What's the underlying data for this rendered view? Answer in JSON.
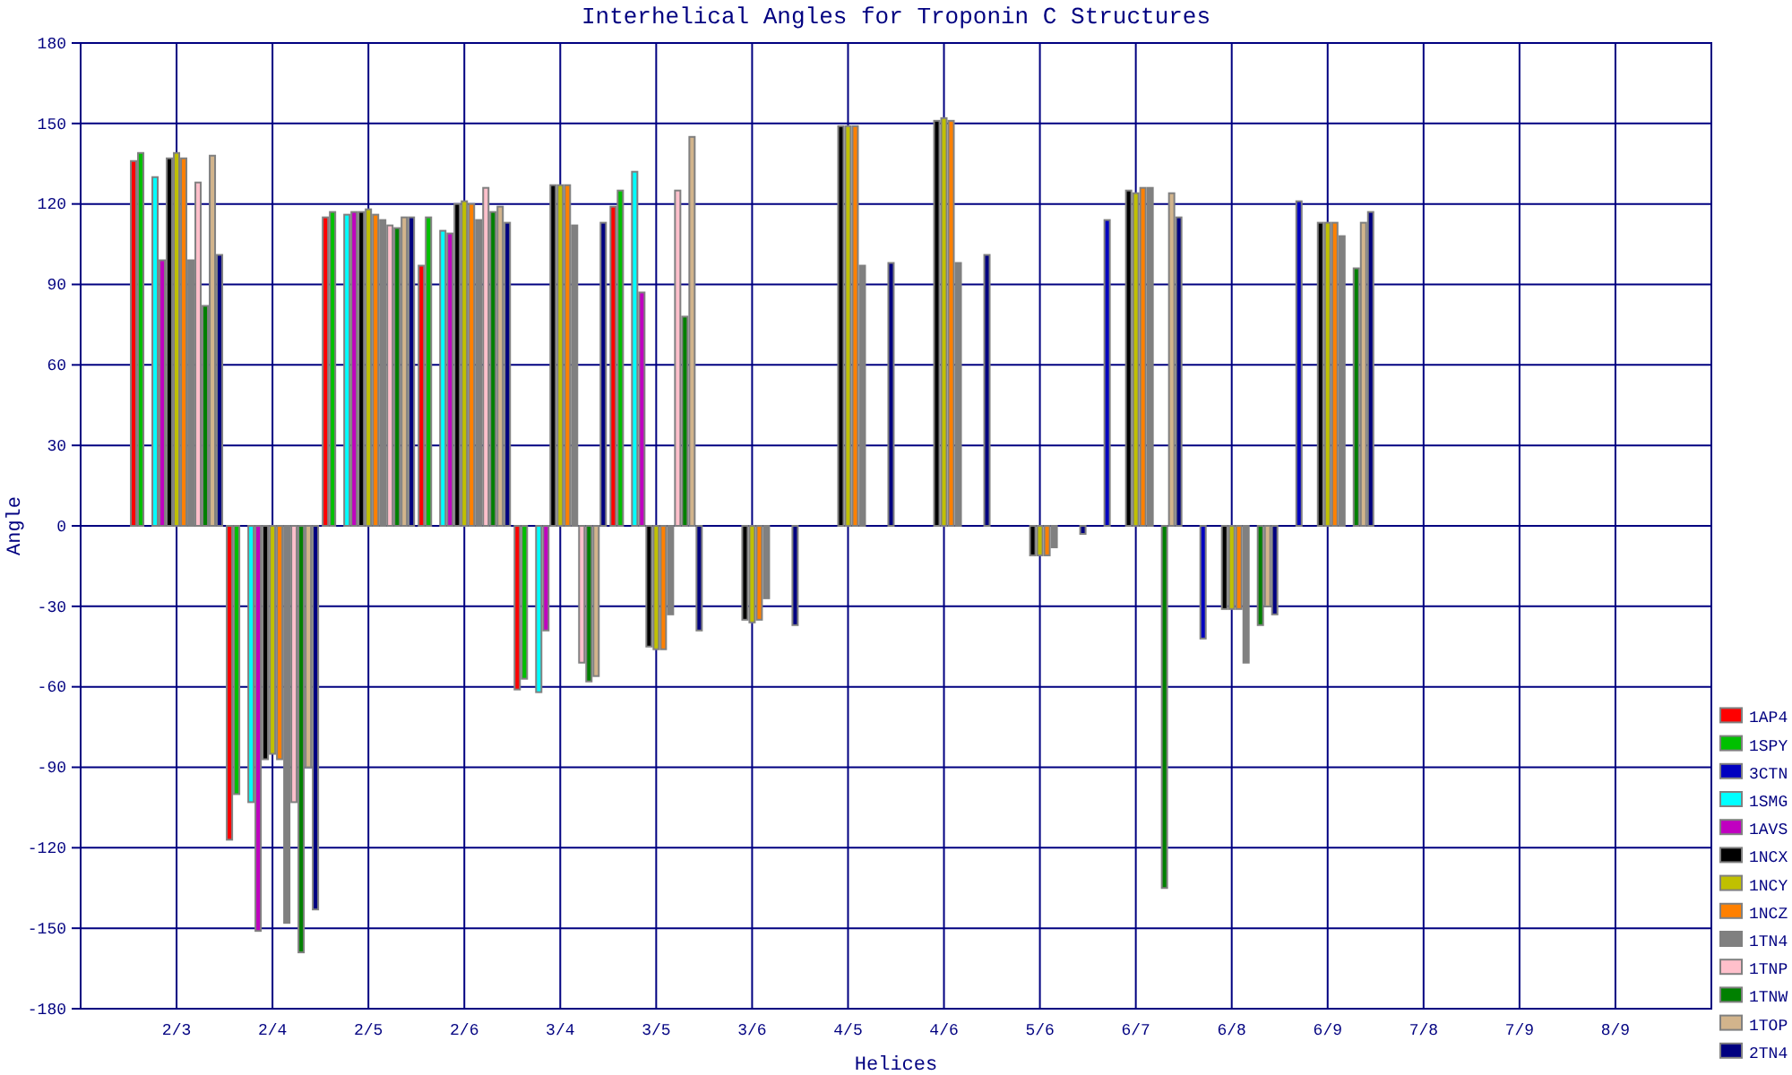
{
  "chart_data": {
    "type": "bar",
    "title": "Interhelical Angles for Troponin C Structures",
    "xlabel": "Helices",
    "ylabel": "Angle",
    "categories": [
      "2/3",
      "2/4",
      "2/5",
      "2/6",
      "3/4",
      "3/5",
      "3/6",
      "4/5",
      "4/6",
      "5/6",
      "6/7",
      "6/8",
      "6/9",
      "7/8",
      "7/9",
      "8/9"
    ],
    "ylim": [
      -180,
      180
    ],
    "yticks": [
      -180,
      -150,
      -120,
      -90,
      -60,
      -30,
      0,
      30,
      60,
      90,
      120,
      150,
      180
    ],
    "grid": true,
    "legend": "bottom right",
    "series": [
      {
        "name": "1AP4",
        "color": "#ff0000",
        "values": [
          136,
          -117,
          115,
          97,
          -61,
          119,
          null,
          null,
          null,
          null,
          null,
          null,
          null,
          null,
          null,
          null
        ]
      },
      {
        "name": "1SPY",
        "color": "#00c000",
        "values": [
          139,
          -100,
          117,
          115,
          -57,
          125,
          null,
          null,
          null,
          null,
          null,
          null,
          null,
          null,
          null,
          null
        ]
      },
      {
        "name": "3CTN",
        "color": "#0000c0",
        "values": [
          null,
          null,
          null,
          null,
          null,
          null,
          null,
          null,
          null,
          null,
          114,
          -42,
          121,
          null,
          null,
          null
        ]
      },
      {
        "name": "1SMG",
        "color": "#00ffff",
        "values": [
          130,
          -103,
          116,
          110,
          -62,
          132,
          null,
          null,
          null,
          null,
          null,
          null,
          null,
          null,
          null,
          null
        ]
      },
      {
        "name": "1AVS",
        "color": "#c000c0",
        "values": [
          99,
          -151,
          117,
          109,
          -39,
          87,
          null,
          null,
          null,
          null,
          null,
          null,
          null,
          null,
          null,
          null
        ]
      },
      {
        "name": "1NCX",
        "color": "#000000",
        "values": [
          137,
          -87,
          117,
          120,
          127,
          -45,
          -35,
          149,
          151,
          -11,
          125,
          -31,
          113,
          null,
          null,
          null
        ]
      },
      {
        "name": "1NCY",
        "color": "#c0c000",
        "values": [
          139,
          -85,
          118,
          121,
          127,
          -46,
          -36,
          149,
          152,
          -11,
          124,
          -31,
          113,
          null,
          null,
          null
        ]
      },
      {
        "name": "1NCZ",
        "color": "#ff8000",
        "values": [
          137,
          -87,
          116,
          120,
          127,
          -46,
          -35,
          149,
          151,
          -11,
          126,
          -31,
          113,
          null,
          null,
          null
        ]
      },
      {
        "name": "1TN4",
        "color": "#808080",
        "values": [
          99,
          -148,
          114,
          114,
          112,
          -33,
          -27,
          97,
          98,
          -8,
          126,
          -51,
          108,
          null,
          null,
          null
        ]
      },
      {
        "name": "1TNP",
        "color": "#ffc0cb",
        "values": [
          128,
          -103,
          112,
          126,
          -51,
          125,
          null,
          null,
          null,
          null,
          null,
          null,
          null,
          null,
          null,
          null
        ]
      },
      {
        "name": "1TNW",
        "color": "#008000",
        "values": [
          82,
          -159,
          111,
          117,
          -58,
          78,
          null,
          null,
          null,
          null,
          -135,
          -37,
          96,
          null,
          null,
          null
        ]
      },
      {
        "name": "1TOP",
        "color": "#d2b48c",
        "values": [
          138,
          -90,
          115,
          119,
          -56,
          145,
          null,
          null,
          null,
          null,
          124,
          -30,
          113,
          null,
          null,
          null
        ]
      },
      {
        "name": "2TN4",
        "color": "#000080",
        "values": [
          101,
          -143,
          115,
          113,
          113,
          -39,
          -37,
          98,
          101,
          -3,
          115,
          -33,
          117,
          null,
          null,
          null
        ]
      }
    ]
  }
}
